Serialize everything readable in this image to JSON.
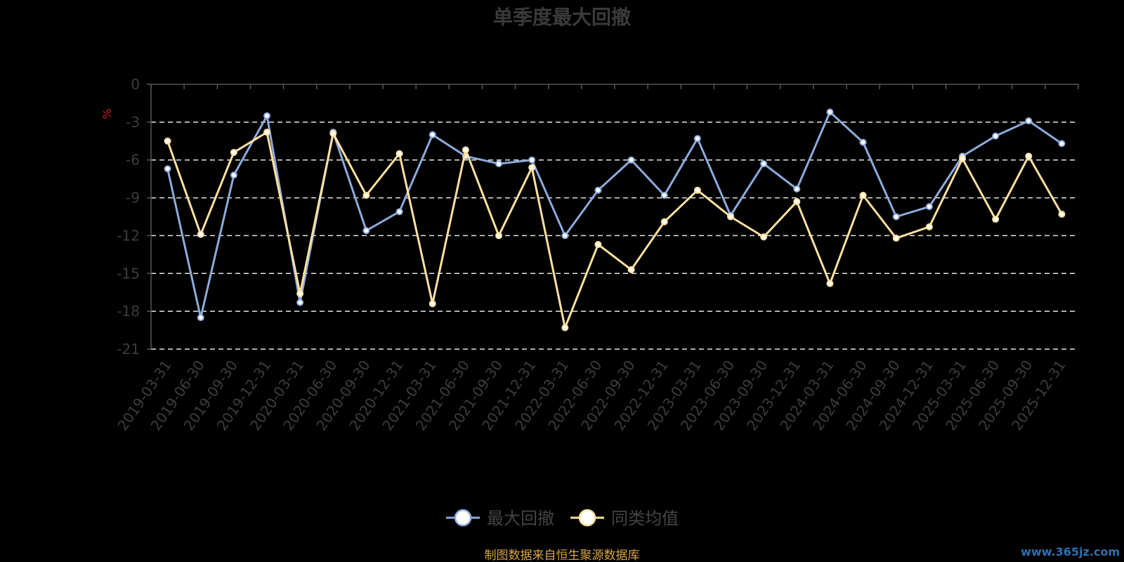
{
  "chart_data": {
    "type": "line",
    "title": "单季度最大回撤",
    "ylabel": "%",
    "ylim": [
      -21,
      0
    ],
    "yticks": [
      0,
      -3,
      -6,
      -9,
      -12,
      -15,
      -18,
      -21
    ],
    "grid": true,
    "legend_position": "bottom",
    "categories": [
      "2019-03-31",
      "2019-06-30",
      "2019-09-30",
      "2019-12-31",
      "2020-03-31",
      "2020-06-30",
      "2020-09-30",
      "2020-12-31",
      "2021-03-31",
      "2021-06-30",
      "2021-09-30",
      "2021-12-31",
      "2022-03-31",
      "2022-06-30",
      "2022-09-30",
      "2022-12-31",
      "2023-03-31",
      "2023-06-30",
      "2023-09-30",
      "2023-12-31",
      "2024-03-31",
      "2024-06-30",
      "2024-09-30",
      "2024-12-31",
      "2025-03-31",
      "2025-06-30",
      "2025-09-30",
      "2025-12-31"
    ],
    "series": [
      {
        "name": "最大回撤",
        "color": "#8eaadb",
        "values": [
          -6.7,
          -18.5,
          -7.2,
          -2.5,
          -17.3,
          -3.8,
          -11.6,
          -10.1,
          -4.0,
          -5.7,
          -6.3,
          -6.0,
          -12.0,
          -8.4,
          -6.0,
          -8.8,
          -4.3,
          -10.4,
          -6.3,
          -8.3,
          -2.2,
          -4.6,
          -10.5,
          -9.7,
          -5.7,
          -4.1,
          -2.9,
          -4.7
        ]
      },
      {
        "name": "同类均值",
        "color": "#ffe0a0",
        "values": [
          -4.5,
          -11.9,
          -5.4,
          -3.8,
          -16.6,
          -3.9,
          -8.8,
          -5.5,
          -17.4,
          -5.2,
          -12.0,
          -6.6,
          -19.3,
          -12.7,
          -14.7,
          -10.9,
          -8.4,
          -10.5,
          -12.1,
          -9.3,
          -15.8,
          -8.8,
          -12.2,
          -11.3,
          -5.9,
          -10.7,
          -5.7,
          -10.3
        ]
      }
    ]
  },
  "footer": {
    "source": "制图数据来自恒生聚源数据库",
    "watermark": "www.365jz.com"
  }
}
